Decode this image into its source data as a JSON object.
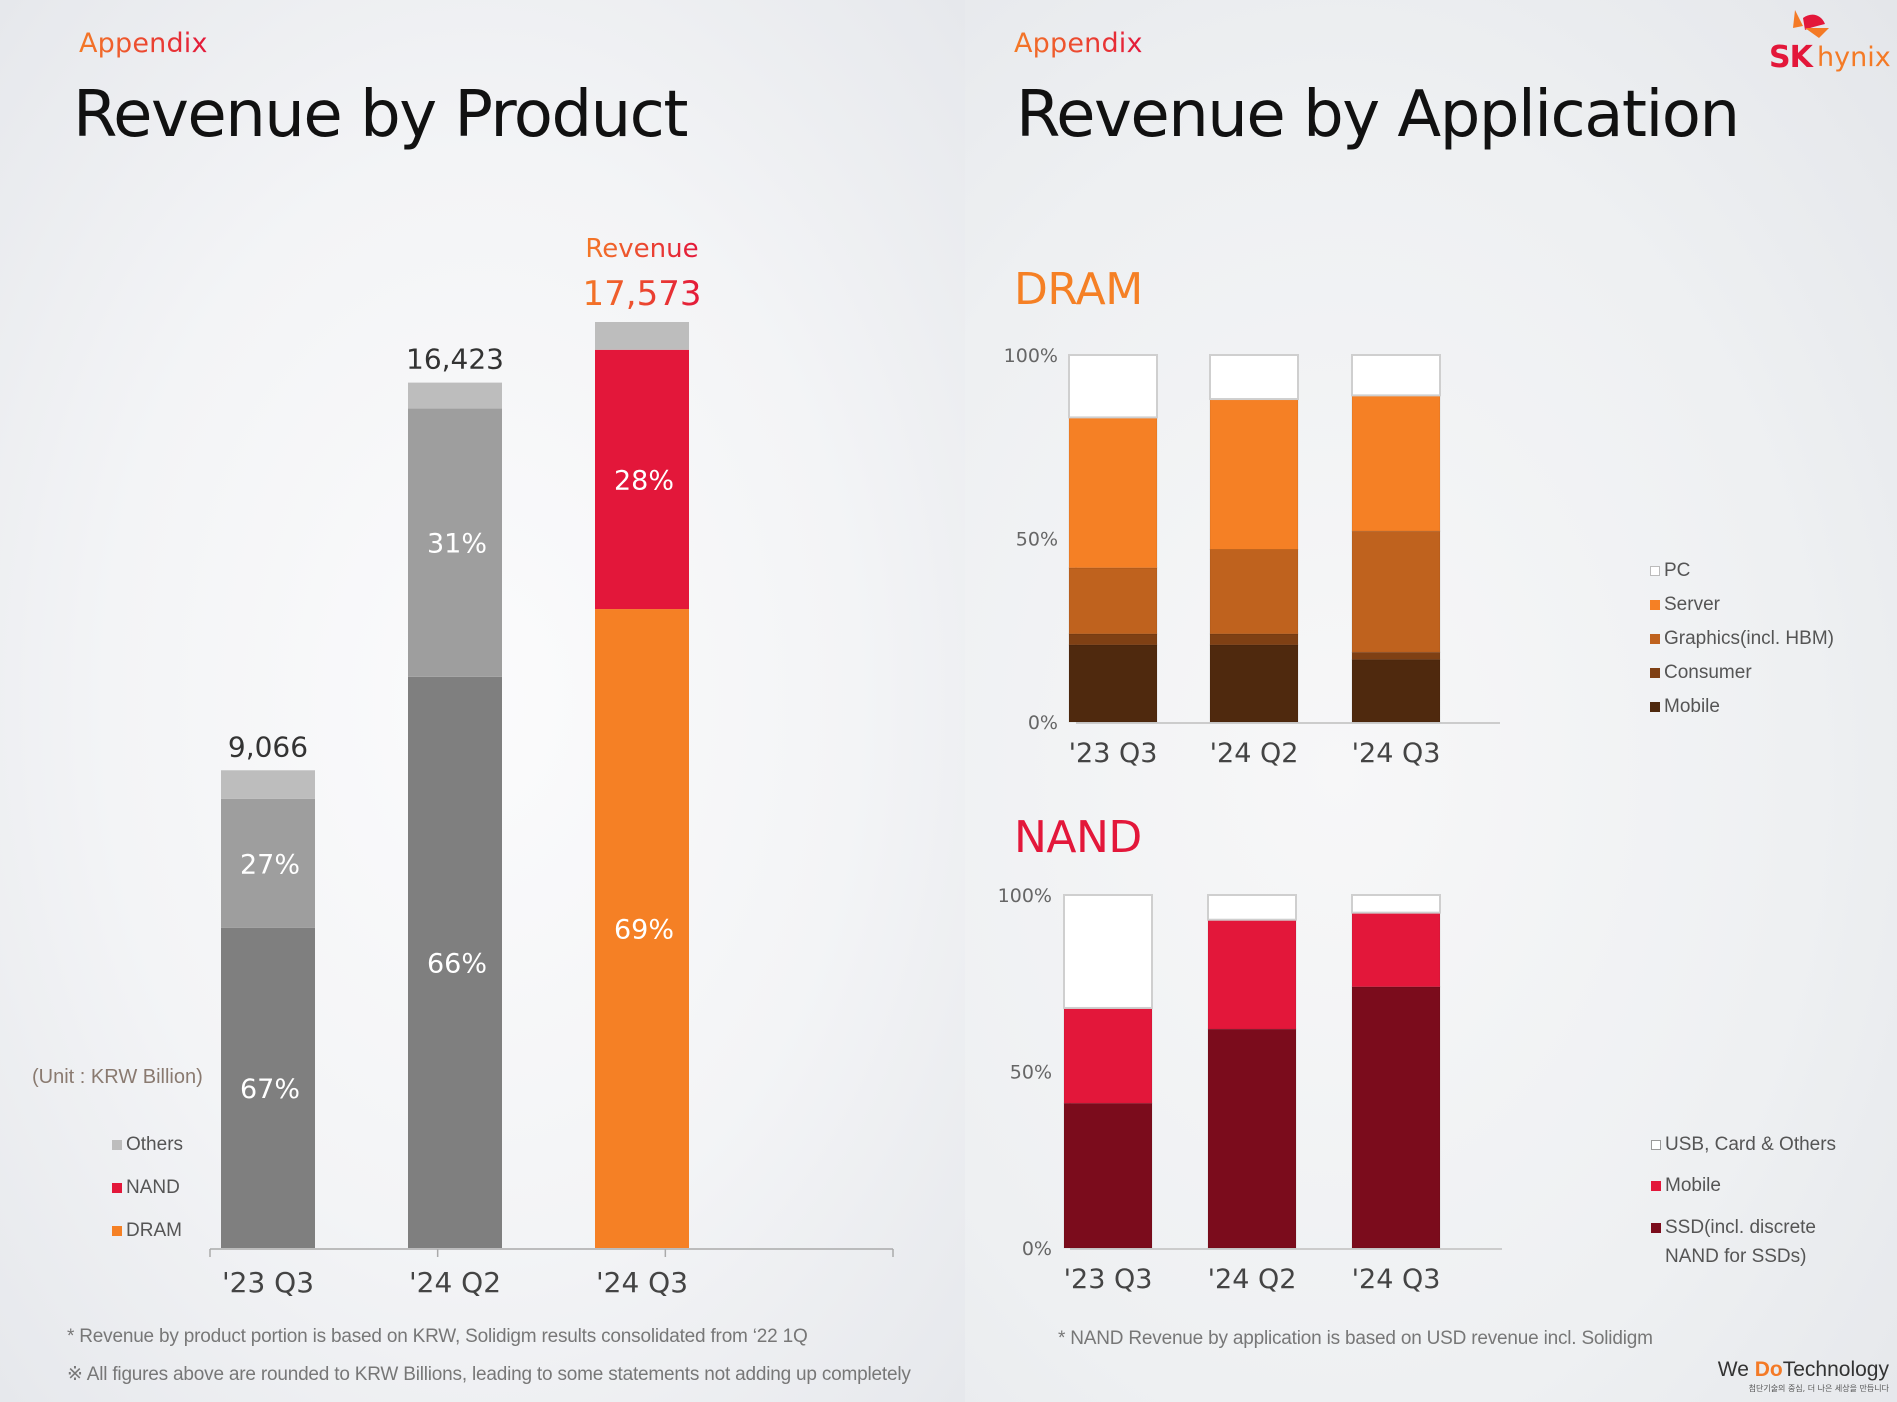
{
  "left": {
    "eyebrow": "Appendix",
    "title": "Revenue by Product",
    "unit_label": "(Unit : KRW Billion)",
    "legend": [
      {
        "label": "Others",
        "color": "#bdbdbd"
      },
      {
        "label": "NAND",
        "color": "#e3173a"
      },
      {
        "label": "DRAM",
        "color": "#f58025"
      }
    ],
    "notes": [
      "* Revenue by product portion is based on KRW, Solidigm results consolidated from ‘22 1Q",
      "※ All figures above are rounded to KRW Billions, leading to some statements not adding up completely"
    ]
  },
  "right": {
    "eyebrow": "Appendix",
    "title": "Revenue by Application",
    "dram_heading": "DRAM",
    "nand_heading": "NAND",
    "dram_legend": [
      {
        "label": "PC",
        "color": "#ffffff"
      },
      {
        "label": "Server",
        "color": "#f58025"
      },
      {
        "label": "Graphics(incl. HBM)",
        "color": "#bf621e"
      },
      {
        "label": "Consumer",
        "color": "#7f4014"
      },
      {
        "label": "Mobile",
        "color": "#4f290e"
      }
    ],
    "nand_legend": [
      {
        "label": "USB, Card & Others",
        "color": "#ffffff"
      },
      {
        "label": "Mobile",
        "color": "#e3173a"
      },
      {
        "label": "SSD(incl. discrete NAND for SSDs)",
        "color": "#7b0c1c"
      }
    ],
    "nand_legend_line1": "SSD(incl. discrete",
    "nand_legend_line2": "NAND for SSDs)",
    "note": "* NAND Revenue by application is based on USD revenue incl. Solidigm"
  },
  "brand": {
    "logo_sk": "SK",
    "logo_hynix": "hynix",
    "slogan_pre": "We ",
    "slogan_do": "Do",
    "slogan_post": "Technology",
    "slogan_kr": "첨단기술의 중심, 더 나은 세상을 만듭니다"
  },
  "chart_data": [
    {
      "id": "revenue_by_product",
      "type": "bar",
      "stacked": true,
      "title": "Revenue by Product",
      "ylabel": "KRW Billion",
      "categories": [
        "'23 Q3",
        "'24 Q2",
        "'24 Q3"
      ],
      "totals": [
        9066,
        16423,
        17573
      ],
      "total_labels": [
        "9,066",
        "16,423",
        "17,573"
      ],
      "highlight_label": "Revenue",
      "series": [
        {
          "name": "DRAM",
          "color_inactive": "#7f7f7f",
          "color_active": "#f58025",
          "values_pct": [
            67,
            66,
            69
          ],
          "labels": [
            "67%",
            "66%",
            "69%"
          ]
        },
        {
          "name": "NAND",
          "color_inactive": "#9e9e9e",
          "color_active": "#e3173a",
          "values_pct": [
            27,
            31,
            28
          ],
          "labels": [
            "27%",
            "31%",
            "28%"
          ]
        },
        {
          "name": "Others",
          "color_inactive": "#bdbdbd",
          "color_active": "#bdbdbd",
          "values_pct": [
            6,
            3,
            3
          ],
          "labels": [
            "",
            "",
            ""
          ]
        }
      ],
      "active_index": 2,
      "ylim": [
        0,
        17573
      ],
      "grid": false,
      "legend": "left"
    },
    {
      "id": "dram_by_application",
      "type": "bar",
      "stacked": true,
      "title": "DRAM",
      "categories": [
        "'23 Q3",
        "'24 Q2",
        "'24 Q3"
      ],
      "yticks": [
        "0%",
        "50%",
        "100%"
      ],
      "ylim": [
        0,
        100
      ],
      "series": [
        {
          "name": "Mobile",
          "color": "#4f290e",
          "values": [
            21,
            21,
            17
          ]
        },
        {
          "name": "Consumer",
          "color": "#7f4014",
          "values": [
            3,
            3,
            2
          ]
        },
        {
          "name": "Graphics(incl. HBM)",
          "color": "#bf621e",
          "values": [
            18,
            23,
            33
          ]
        },
        {
          "name": "Server",
          "color": "#f58025",
          "values": [
            41,
            41,
            37
          ]
        },
        {
          "name": "PC",
          "color": "#ffffff",
          "values": [
            17,
            12,
            11
          ]
        }
      ],
      "grid": false,
      "legend": "right"
    },
    {
      "id": "nand_by_application",
      "type": "bar",
      "stacked": true,
      "title": "NAND",
      "categories": [
        "'23 Q3",
        "'24 Q2",
        "'24 Q3"
      ],
      "yticks": [
        "0%",
        "50%",
        "100%"
      ],
      "ylim": [
        0,
        100
      ],
      "series": [
        {
          "name": "SSD(incl. discrete NAND for SSDs)",
          "color": "#7b0c1c",
          "values": [
            41,
            62,
            74
          ]
        },
        {
          "name": "Mobile",
          "color": "#e3173a",
          "values": [
            27,
            31,
            21
          ]
        },
        {
          "name": "USB, Card & Others",
          "color": "#ffffff",
          "values": [
            32,
            7,
            5
          ]
        }
      ],
      "grid": false,
      "legend": "right"
    }
  ]
}
